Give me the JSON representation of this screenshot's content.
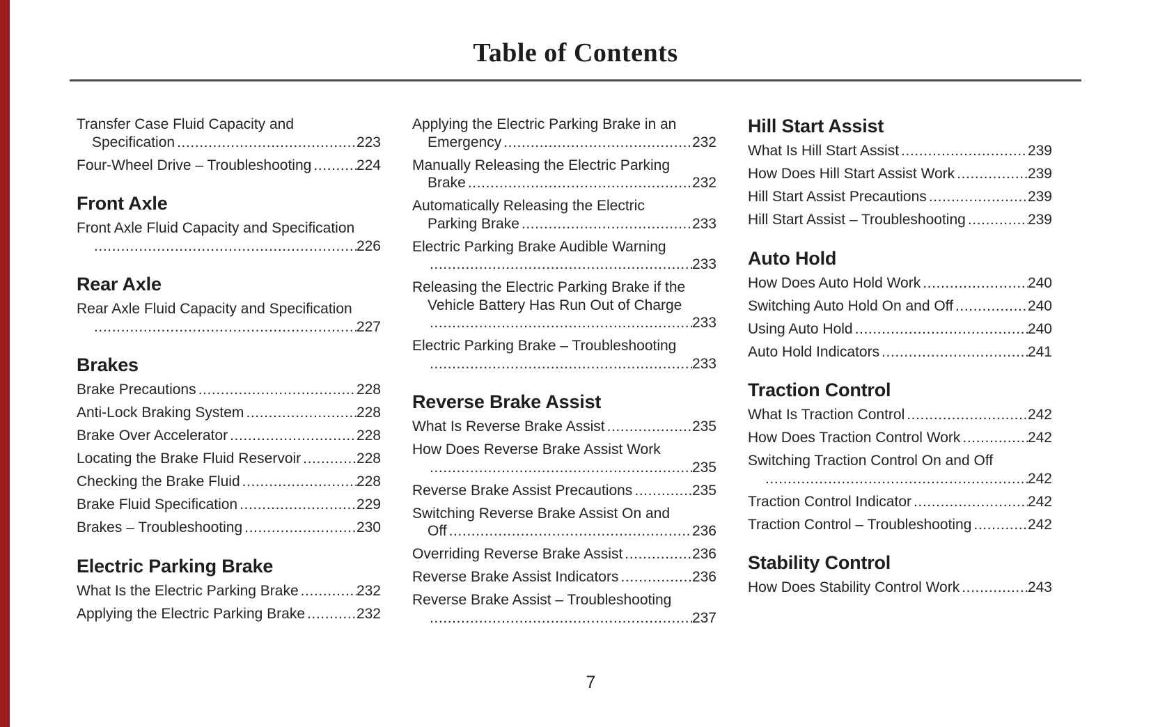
{
  "title": "Table of Contents",
  "footer": {
    "page_number": "7"
  },
  "colors": {
    "accent_stripe": "#9e1b1e",
    "rule": "#4c4c4c",
    "text": "#232323"
  },
  "columns": [
    {
      "blocks": [
        {
          "entries": [
            {
              "lines": [
                {
                  "t": "Transfer Case Fluid Capacity and"
                },
                {
                  "t": "Specification",
                  "indent": true,
                  "page": "223"
                }
              ]
            },
            {
              "lines": [
                {
                  "t": "Four-Wheel Drive – Troubleshooting",
                  "page": "224"
                }
              ]
            }
          ]
        },
        {
          "heading": "Front Axle"
        },
        {
          "entries": [
            {
              "lines": [
                {
                  "t": "Front Axle Fluid Capacity and Specification"
                },
                {
                  "t": "",
                  "indent": true,
                  "page": "226"
                }
              ]
            }
          ]
        },
        {
          "heading": "Rear Axle"
        },
        {
          "entries": [
            {
              "lines": [
                {
                  "t": "Rear Axle Fluid Capacity and Specification"
                },
                {
                  "t": "",
                  "indent": true,
                  "page": "227"
                }
              ]
            }
          ]
        },
        {
          "heading": "Brakes"
        },
        {
          "entries": [
            {
              "lines": [
                {
                  "t": "Brake Precautions",
                  "page": "228"
                }
              ]
            },
            {
              "lines": [
                {
                  "t": "Anti-Lock Braking System",
                  "page": "228"
                }
              ]
            },
            {
              "lines": [
                {
                  "t": "Brake Over Accelerator",
                  "page": "228"
                }
              ]
            },
            {
              "lines": [
                {
                  "t": "Locating the Brake Fluid Reservoir",
                  "page": "228"
                }
              ]
            },
            {
              "lines": [
                {
                  "t": "Checking the Brake Fluid",
                  "page": "228"
                }
              ]
            },
            {
              "lines": [
                {
                  "t": "Brake Fluid Specification",
                  "page": "229"
                }
              ]
            },
            {
              "lines": [
                {
                  "t": "Brakes – Troubleshooting",
                  "page": "230"
                }
              ]
            }
          ]
        },
        {
          "heading": "Electric Parking Brake"
        },
        {
          "entries": [
            {
              "lines": [
                {
                  "t": "What Is the Electric Parking Brake",
                  "page": "232"
                }
              ]
            },
            {
              "lines": [
                {
                  "t": "Applying the Electric Parking Brake",
                  "page": "232"
                }
              ]
            }
          ]
        }
      ]
    },
    {
      "blocks": [
        {
          "entries": [
            {
              "lines": [
                {
                  "t": "Applying the Electric Parking Brake in an"
                },
                {
                  "t": "Emergency",
                  "indent": true,
                  "page": "232"
                }
              ]
            },
            {
              "lines": [
                {
                  "t": "Manually Releasing the Electric Parking"
                },
                {
                  "t": "Brake",
                  "indent": true,
                  "page": "232"
                }
              ]
            },
            {
              "lines": [
                {
                  "t": "Automatically Releasing the Electric"
                },
                {
                  "t": "Parking Brake",
                  "indent": true,
                  "page": "233"
                }
              ]
            },
            {
              "lines": [
                {
                  "t": "Electric Parking Brake Audible Warning"
                },
                {
                  "t": "",
                  "indent": true,
                  "page": "233"
                }
              ]
            },
            {
              "lines": [
                {
                  "t": "Releasing the Electric Parking Brake if the"
                },
                {
                  "t": "Vehicle Battery Has Run Out of Charge",
                  "indent": true
                },
                {
                  "t": "",
                  "indent": true,
                  "page": "233"
                }
              ]
            },
            {
              "lines": [
                {
                  "t": "Electric Parking Brake – Troubleshooting"
                },
                {
                  "t": "",
                  "indent": true,
                  "page": "233"
                }
              ]
            }
          ]
        },
        {
          "heading": "Reverse Brake Assist"
        },
        {
          "entries": [
            {
              "lines": [
                {
                  "t": "What Is Reverse Brake Assist",
                  "page": "235"
                }
              ]
            },
            {
              "lines": [
                {
                  "t": "How Does Reverse Brake Assist Work"
                },
                {
                  "t": "",
                  "indent": true,
                  "page": "235"
                }
              ]
            },
            {
              "lines": [
                {
                  "t": "Reverse Brake Assist Precautions",
                  "page": "235"
                }
              ]
            },
            {
              "lines": [
                {
                  "t": "Switching Reverse Brake Assist On and"
                },
                {
                  "t": "Off",
                  "indent": true,
                  "page": "236"
                }
              ]
            },
            {
              "lines": [
                {
                  "t": "Overriding Reverse Brake Assist",
                  "page": "236"
                }
              ]
            },
            {
              "lines": [
                {
                  "t": "Reverse Brake Assist Indicators",
                  "page": "236"
                }
              ]
            },
            {
              "lines": [
                {
                  "t": "Reverse Brake Assist – Troubleshooting"
                },
                {
                  "t": "",
                  "indent": true,
                  "page": "237"
                }
              ]
            }
          ]
        }
      ]
    },
    {
      "blocks": [
        {
          "heading": "Hill Start Assist"
        },
        {
          "entries": [
            {
              "lines": [
                {
                  "t": "What Is Hill Start Assist",
                  "page": "239"
                }
              ]
            },
            {
              "lines": [
                {
                  "t": "How Does Hill Start Assist Work",
                  "page": "239"
                }
              ]
            },
            {
              "lines": [
                {
                  "t": "Hill Start Assist Precautions",
                  "page": "239"
                }
              ]
            },
            {
              "lines": [
                {
                  "t": "Hill Start Assist – Troubleshooting",
                  "page": "239"
                }
              ]
            }
          ]
        },
        {
          "heading": "Auto Hold"
        },
        {
          "entries": [
            {
              "lines": [
                {
                  "t": "How Does Auto Hold Work",
                  "page": "240"
                }
              ]
            },
            {
              "lines": [
                {
                  "t": "Switching Auto Hold On and Off",
                  "page": "240"
                }
              ]
            },
            {
              "lines": [
                {
                  "t": "Using Auto Hold",
                  "page": "240"
                }
              ]
            },
            {
              "lines": [
                {
                  "t": "Auto Hold Indicators",
                  "page": "241"
                }
              ]
            }
          ]
        },
        {
          "heading": "Traction Control"
        },
        {
          "entries": [
            {
              "lines": [
                {
                  "t": "What Is Traction Control",
                  "page": "242"
                }
              ]
            },
            {
              "lines": [
                {
                  "t": "How Does Traction Control Work",
                  "page": "242"
                }
              ]
            },
            {
              "lines": [
                {
                  "t": "Switching Traction Control On and Off"
                },
                {
                  "t": "",
                  "indent": true,
                  "page": "242"
                }
              ]
            },
            {
              "lines": [
                {
                  "t": "Traction Control Indicator",
                  "page": "242"
                }
              ]
            },
            {
              "lines": [
                {
                  "t": "Traction Control – Troubleshooting",
                  "page": "242"
                }
              ]
            }
          ]
        },
        {
          "heading": "Stability Control"
        },
        {
          "entries": [
            {
              "lines": [
                {
                  "t": "How Does Stability Control Work",
                  "page": "243"
                }
              ]
            }
          ]
        }
      ]
    }
  ]
}
